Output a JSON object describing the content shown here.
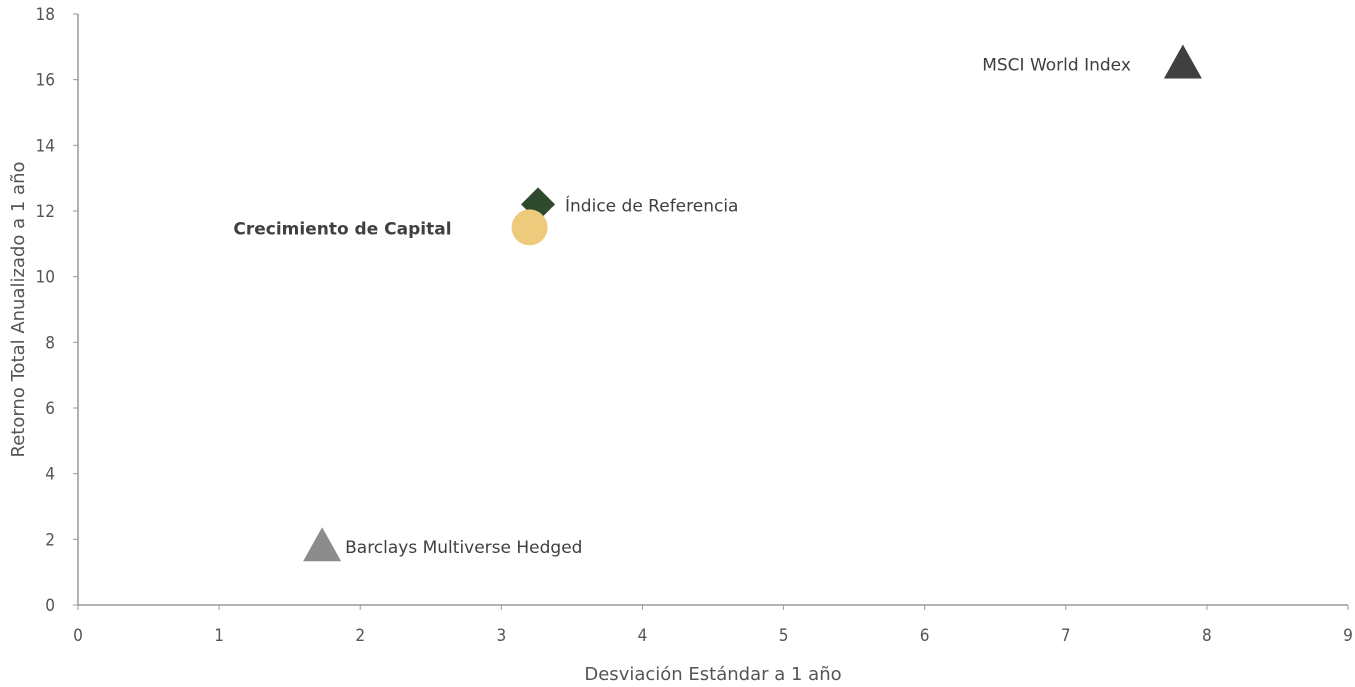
{
  "chart_data": {
    "type": "scatter",
    "title": "",
    "xlabel": "Desviación Estándar a 1 año",
    "ylabel": "Retorno Total Anualizado a 1 año",
    "xlim": [
      0,
      9
    ],
    "ylim": [
      0,
      18
    ],
    "x_ticks": [
      0,
      1,
      2,
      3,
      4,
      5,
      6,
      7,
      8,
      9
    ],
    "y_ticks": [
      0,
      2,
      4,
      6,
      8,
      10,
      12,
      14,
      16,
      18
    ],
    "grid": false,
    "legend": "none",
    "series": [
      {
        "name": "MSCI World Index",
        "label_bold": false,
        "marker": "triangle",
        "color": "#404040",
        "label_side": "left",
        "x": 7.83,
        "y": 16.5
      },
      {
        "name": "Índice de Referencia",
        "label_bold": false,
        "marker": "diamond",
        "color": "#2e4a2e",
        "label_side": "right",
        "x": 3.26,
        "y": 12.2
      },
      {
        "name": "Crecimiento de Capital",
        "label_bold": true,
        "marker": "circle",
        "color": "#eecb7c",
        "label_side": "left",
        "x": 3.2,
        "y": 11.5
      },
      {
        "name": "Barclays Multiverse Hedged",
        "label_bold": false,
        "marker": "triangle",
        "color": "#8c8c8c",
        "label_side": "right",
        "x": 1.73,
        "y": 1.8
      }
    ]
  }
}
